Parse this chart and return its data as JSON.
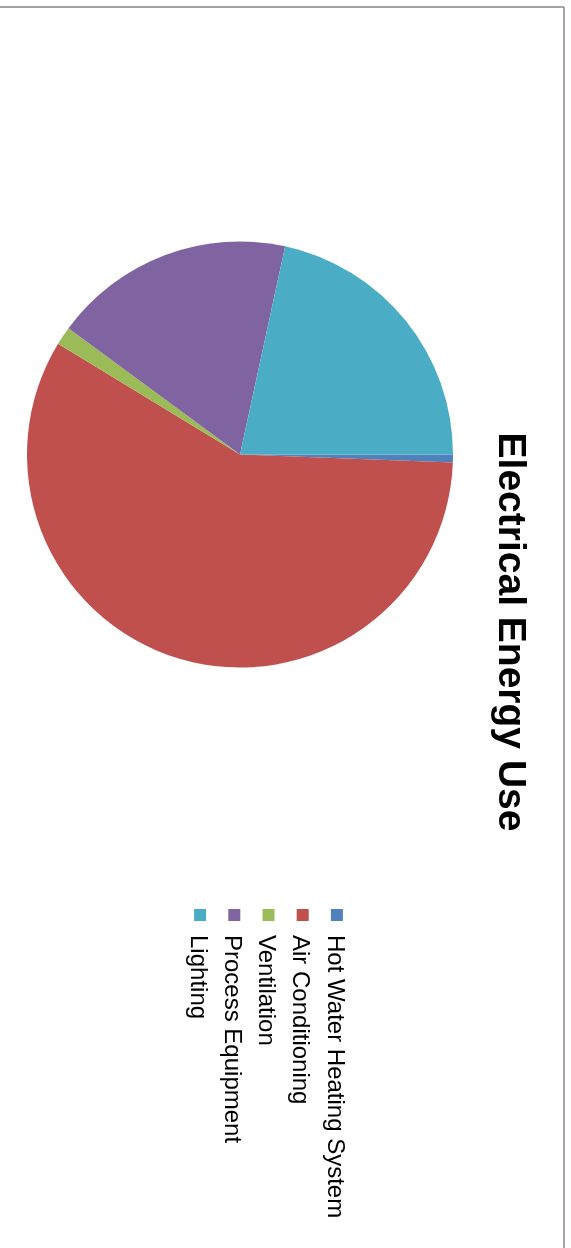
{
  "chart_data": {
    "type": "pie",
    "title": "Electrical Energy Use",
    "categories": [
      "Hot Water Heating System",
      "Air Conditioning",
      "Ventilation",
      "Process Equipment",
      "Lighting"
    ],
    "values": [
      0.6,
      58.1,
      1.4,
      18.3,
      21.6
    ],
    "colors": [
      "#4f81bd",
      "#c0504d",
      "#9bbb59",
      "#8064a2",
      "#4bacc6"
    ],
    "legend": "right"
  }
}
